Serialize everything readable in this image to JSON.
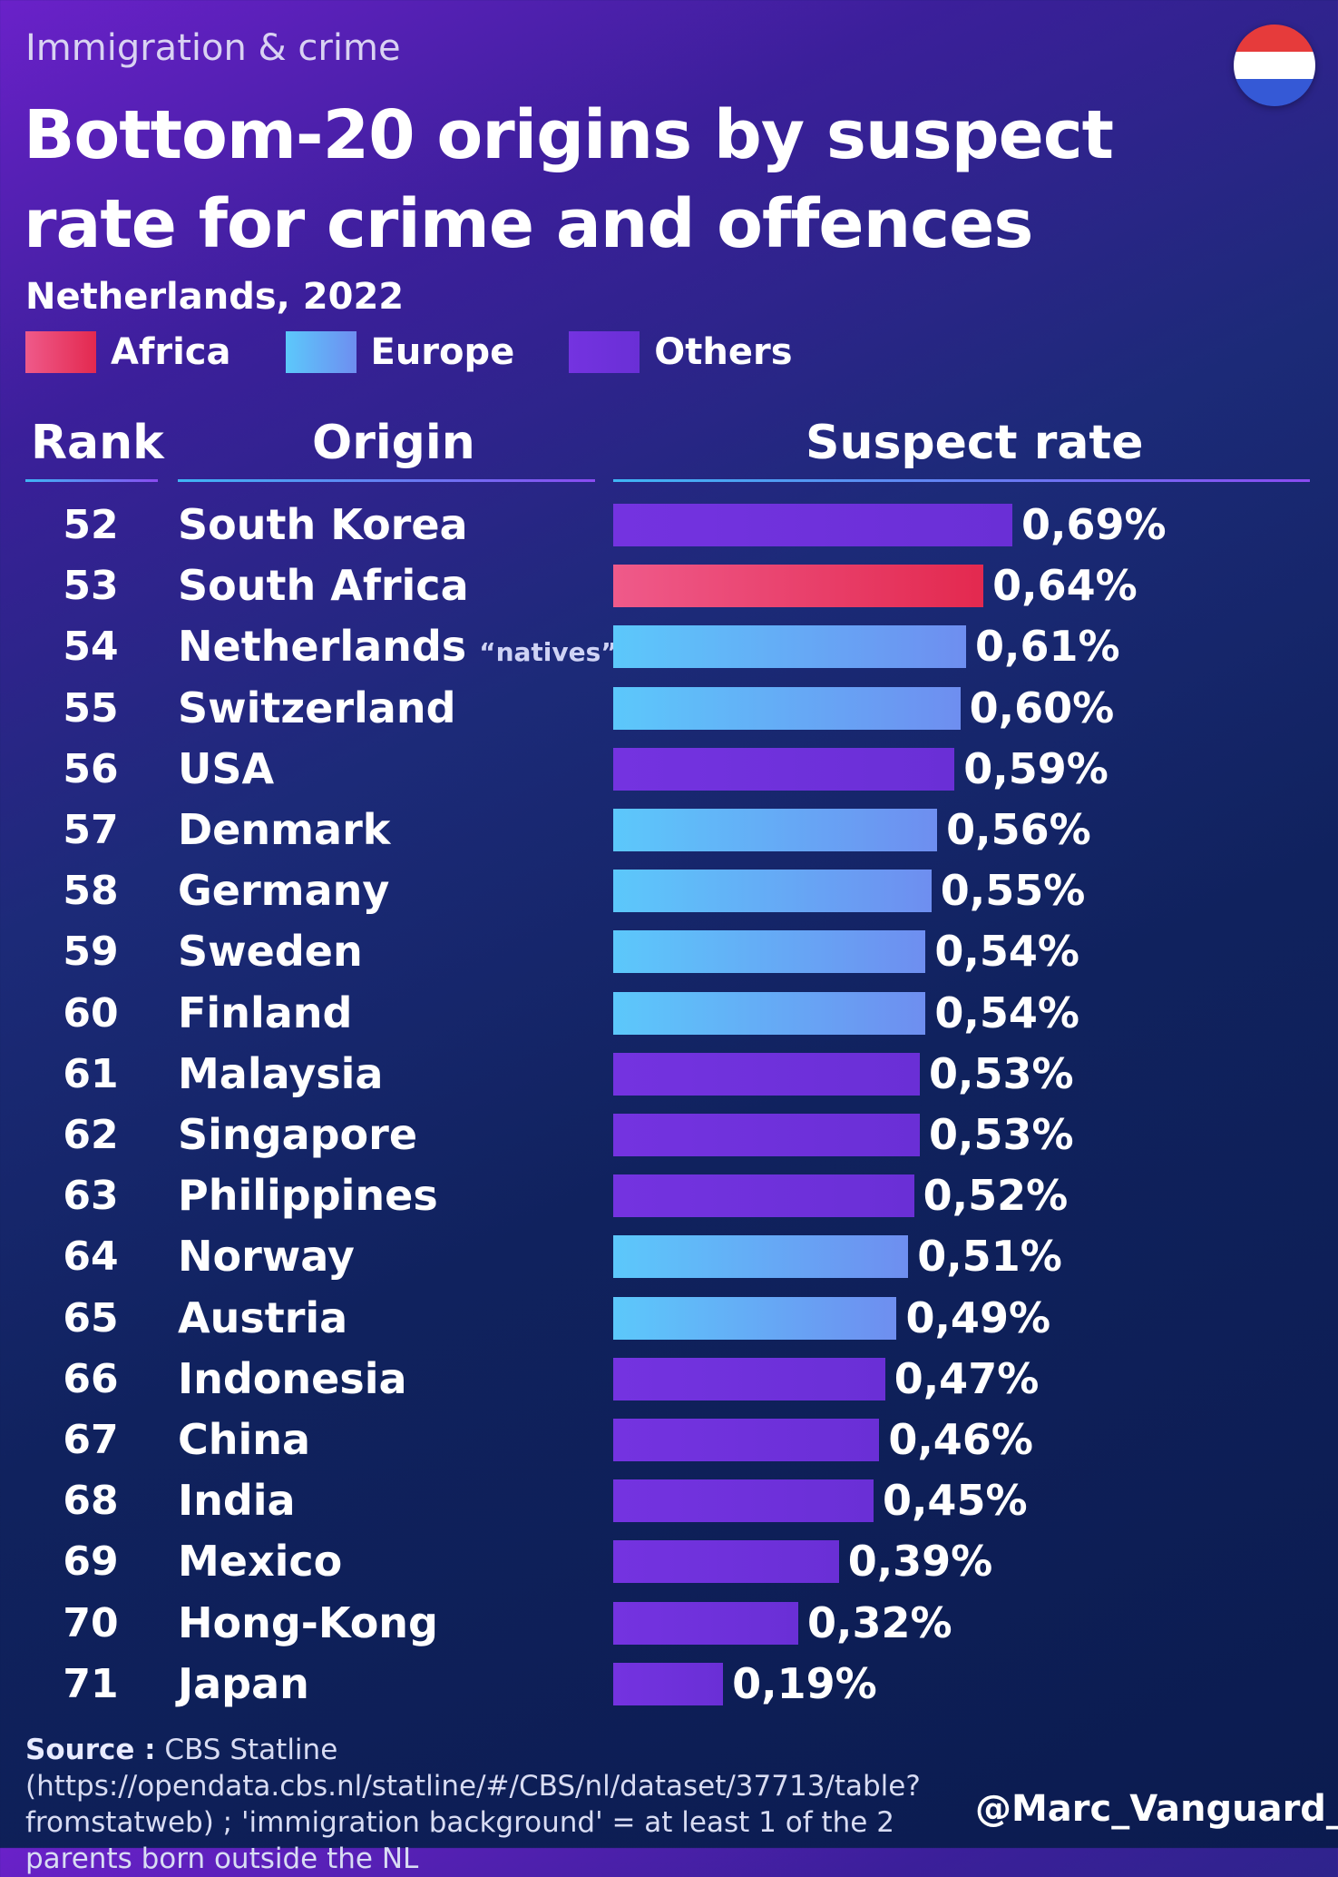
{
  "header": {
    "kicker": "Immigration & crime",
    "title": "Bottom-20 origins by suspect rate for crime and offences",
    "subtitle": "Netherlands, 2022",
    "flag_colors": [
      "#e63b3b",
      "#ffffff",
      "#3559d6"
    ]
  },
  "legend": [
    {
      "label": "Africa",
      "color": "#e8335e"
    },
    {
      "label": "Europe",
      "color": "#5ab8f5"
    },
    {
      "label": "Others",
      "color": "#7432e0"
    }
  ],
  "columns": {
    "rank": "Rank",
    "origin": "Origin",
    "rate": "Suspect rate"
  },
  "chart_data": {
    "type": "bar",
    "orientation": "horizontal",
    "categories": [
      "South Korea",
      "South Africa",
      "Netherlands",
      "Switzerland",
      "USA",
      "Denmark",
      "Germany",
      "Sweden",
      "Finland",
      "Malaysia",
      "Singapore",
      "Philippines",
      "Norway",
      "Austria",
      "Indonesia",
      "China",
      "India",
      "Mexico",
      "Hong-Kong",
      "Japan"
    ],
    "ranks": [
      52,
      53,
      54,
      55,
      56,
      57,
      58,
      59,
      60,
      61,
      62,
      63,
      64,
      65,
      66,
      67,
      68,
      69,
      70,
      71
    ],
    "values": [
      0.69,
      0.64,
      0.61,
      0.6,
      0.59,
      0.56,
      0.55,
      0.54,
      0.54,
      0.53,
      0.53,
      0.52,
      0.51,
      0.49,
      0.47,
      0.46,
      0.45,
      0.39,
      0.32,
      0.19
    ],
    "labels": [
      "0,69%",
      "0,64%",
      "0,61%",
      "0,60%",
      "0,59%",
      "0,56%",
      "0,55%",
      "0,54%",
      "0,54%",
      "0,53%",
      "0,53%",
      "0,52%",
      "0,51%",
      "0,49%",
      "0,47%",
      "0,46%",
      "0,45%",
      "0,39%",
      "0,32%",
      "0,19%"
    ],
    "groups": [
      "Others",
      "Africa",
      "Europe",
      "Europe",
      "Others",
      "Europe",
      "Europe",
      "Europe",
      "Europe",
      "Others",
      "Others",
      "Others",
      "Europe",
      "Europe",
      "Others",
      "Others",
      "Others",
      "Others",
      "Others",
      "Others"
    ],
    "notes": [
      "",
      "",
      "“natives”",
      "",
      "",
      "",
      "",
      "",
      "",
      "",
      "",
      "",
      "",
      "",
      "",
      "",
      "",
      "",
      "",
      ""
    ],
    "unit": "%"
  },
  "footer": {
    "source_label": "Source :",
    "source_text": " CBS Statline (https://opendata.cbs.nl/statline/#/CBS/nl/dataset/37713/table?fromstatweb) ; 'immigration background' = at least 1 of the 2 parents born outside the NL",
    "handle": "@Marc_Vanguard_i"
  }
}
